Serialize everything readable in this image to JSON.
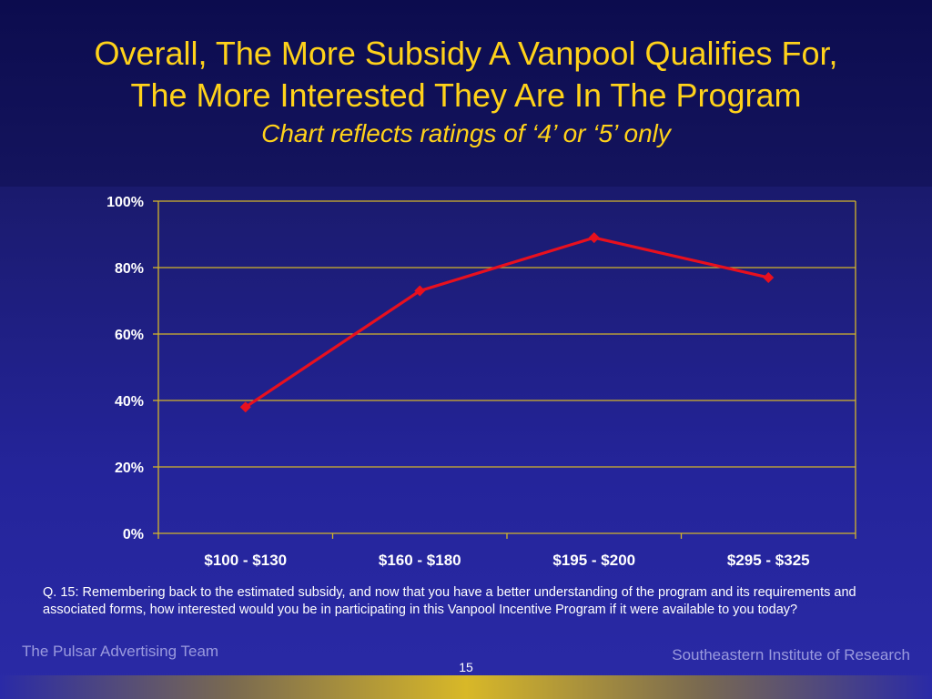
{
  "slide": {
    "title_line1": "Overall, The More Subsidy A Vanpool Qualifies For,",
    "title_line2": "The More Interested They Are In The Program",
    "subtitle": "Chart reflects ratings of ‘4’ or ‘5’ only",
    "question": "Q. 15: Remembering back to the estimated subsidy, and now that you have a better understanding of the program and its requirements and associated forms, how interested would you be in participating in this Vanpool Incentive Program if it were available to you today?",
    "footer_left": "The Pulsar Advertising Team",
    "footer_right": "Southeastern Institute of Research",
    "page_number": "15"
  },
  "colors": {
    "title": "#ffd21a",
    "grid": "#d4b52a",
    "line": "#e8101e",
    "axis_text": "#ffffff"
  },
  "chart_data": {
    "type": "line",
    "categories": [
      "$100 - $130",
      "$160 - $180",
      "$195 - $200",
      "$295 - $325"
    ],
    "series": [
      {
        "values": [
          38,
          73,
          89,
          77
        ]
      }
    ],
    "ylim": [
      0,
      100
    ],
    "yticks": [
      0,
      20,
      40,
      60,
      80,
      100
    ],
    "ytick_labels": [
      "0%",
      "20%",
      "40%",
      "60%",
      "80%",
      "100%"
    ],
    "grid": true,
    "legend": false
  }
}
